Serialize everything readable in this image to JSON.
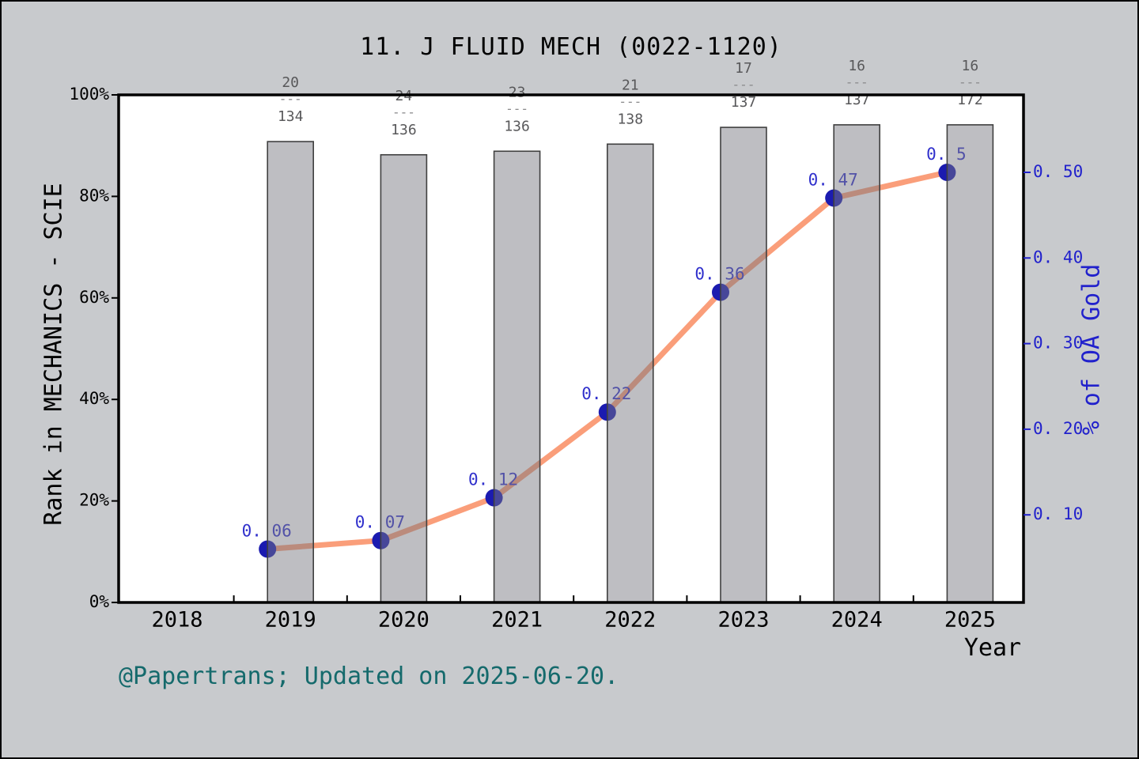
{
  "figure": {
    "background": "#c8cacd",
    "footer": "@Papertrans; Updated on 2025-06-20.",
    "footer_color": "#156a6c"
  },
  "chart_data": {
    "type": "bar",
    "subtype": "bar-with-line-dual-axis",
    "title": "11. J FLUID MECH (0022-1120)",
    "xlabel": "Year",
    "ylabel_left": "Rank in MECHANICS - SCIE",
    "ylabel_right": "% of OA Gold",
    "x_tick_labels": [
      "2018",
      "2019",
      "2020",
      "2021",
      "2022",
      "2023",
      "2024",
      "2025"
    ],
    "x_tick_values": [
      2018,
      2019,
      2020,
      2021,
      2022,
      2023,
      2024,
      2025
    ],
    "left_axis": {
      "tick_labels": [
        "0%",
        "20%",
        "40%",
        "60%",
        "80%",
        "100%"
      ],
      "tick_values": [
        0,
        20,
        40,
        60,
        80,
        100
      ],
      "range_percent": [
        0,
        100
      ],
      "color": "#000000"
    },
    "right_axis": {
      "tick_labels": [
        "0. 10",
        "0. 20",
        "0. 30",
        "0. 40",
        "0. 50"
      ],
      "tick_values": [
        0.1,
        0.2,
        0.3,
        0.4,
        0.5
      ],
      "range": [
        0,
        0.593
      ],
      "color": "#2121cc"
    },
    "bars": {
      "name": "rank-in-category-bars",
      "years": [
        2019,
        2020,
        2021,
        2022,
        2023,
        2024,
        2025
      ],
      "values_percent": [
        90.8,
        88.2,
        88.9,
        90.3,
        93.6,
        94.1,
        94.1
      ],
      "fraction_separator": "---",
      "fractions": [
        {
          "numerator": "20",
          "denominator": "134"
        },
        {
          "numerator": "24",
          "denominator": "136"
        },
        {
          "numerator": "23",
          "denominator": "136"
        },
        {
          "numerator": "21",
          "denominator": "138"
        },
        {
          "numerator": "17",
          "denominator": "137"
        },
        {
          "numerator": "16",
          "denominator": "137"
        },
        {
          "numerator": "16",
          "denominator": "172"
        }
      ],
      "fill": "#787880",
      "fill_opacity": 0.48,
      "edge": "#404040",
      "fraction_text_color": "#58585a",
      "fraction_dash_color": "#8a8a8c"
    },
    "line": {
      "name": "oa-gold-share-line",
      "years": [
        2019,
        2020,
        2021,
        2022,
        2023,
        2024,
        2025
      ],
      "values": [
        0.06,
        0.07,
        0.12,
        0.22,
        0.36,
        0.47,
        0.5
      ],
      "point_labels": [
        "0. 06",
        "0. 07",
        "0. 12",
        "0. 22",
        "0. 36",
        "0. 47",
        "0. 5"
      ],
      "line_color": "#fa9e7a",
      "marker_color": "#1b1bb0",
      "label_color": "#3030cc"
    },
    "legend": "none",
    "grid": false,
    "plot_background": "#ffffff"
  }
}
